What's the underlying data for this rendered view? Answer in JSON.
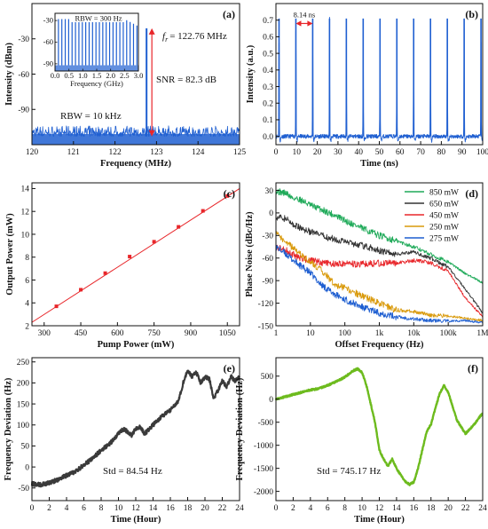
{
  "chart_data": [
    {
      "panel_label": "(a)",
      "type": "line",
      "xlabel": "Frequency (MHz)",
      "ylabel": "Intensity (dBm)",
      "xlim": [
        120,
        125
      ],
      "ylim": [
        -120,
        0
      ],
      "xticks": [
        120,
        121,
        122,
        123,
        124,
        125
      ],
      "yticks": [
        -30,
        -60,
        -90
      ],
      "color": "#1f5fd1",
      "noise_floor_dbm": -113,
      "peak": {
        "x": 122.76,
        "y": -21
      },
      "annotations": {
        "rep_rate": "= 122.76 MHz",
        "snr": "SNR = 82.3 dB",
        "rbw": "RBW = 10 kHz",
        "rep_rate_symbol": "f",
        "rep_rate_sub": "r"
      },
      "inset": {
        "rbw": "RBW = 300 Hz",
        "xlabel": "Frequency (GHz)",
        "xlim": [
          0,
          3.0
        ],
        "ylim": [
          -100,
          -20
        ],
        "xticks": [
          "0.0",
          "0.5",
          "1.0",
          "1.5",
          "2.0",
          "2.5",
          "3.0"
        ],
        "yticks": [
          -30,
          -60,
          -90
        ],
        "tone_spacing_ghz": 0.12276,
        "tone_top_dbm": -28,
        "floor_dbm": -92
      }
    },
    {
      "panel_label": "(b)",
      "type": "line",
      "xlabel": "Time (ns)",
      "ylabel": "Intensity (a.u.)",
      "xlim": [
        0,
        100
      ],
      "ylim": [
        -0.05,
        0.8
      ],
      "xticks": [
        0,
        10,
        20,
        30,
        40,
        50,
        60,
        70,
        80,
        90,
        100
      ],
      "yticks": [
        "0.0",
        "0.1",
        "0.2",
        "0.3",
        "0.4",
        "0.5",
        "0.6",
        "0.7"
      ],
      "color": "#1f5fd1",
      "pulse_times_ns": [
        1.5,
        9.64,
        17.78,
        25.92,
        34.06,
        42.2,
        50.34,
        58.48,
        66.62,
        74.76,
        82.9,
        91.04,
        99.18
      ],
      "pulse_height": 0.71,
      "annotation": "8.14 ns",
      "annotation_span": [
        9.64,
        17.78
      ]
    },
    {
      "panel_label": "(c)",
      "type": "scatter",
      "xlabel": "Pump Power (mW)",
      "ylabel": "Output Power (mW)",
      "xlim": [
        250,
        1100
      ],
      "ylim": [
        2,
        14.5
      ],
      "xticks": [
        300,
        450,
        600,
        750,
        900,
        1050
      ],
      "yticks": [
        2,
        4,
        6,
        8,
        10,
        12,
        14
      ],
      "color": "#e8262a",
      "x": [
        350,
        450,
        550,
        650,
        750,
        850,
        950,
        1050
      ],
      "y": [
        3.7,
        5.15,
        6.6,
        8.05,
        9.35,
        10.65,
        12.05,
        13.35
      ],
      "fit_line": {
        "x": [
          250,
          1100
        ],
        "y": [
          2.3,
          14.0
        ]
      }
    },
    {
      "panel_label": "(d)",
      "type": "line",
      "xscale": "log",
      "xlabel": "Offset Frequency (Hz)",
      "ylabel": "Phase Noise (dBc/Hz)",
      "xlim": [
        1,
        1000000
      ],
      "ylim": [
        -150,
        40
      ],
      "xticks": [
        "1",
        "10",
        "100",
        "1k",
        "10k",
        "100k",
        "1M"
      ],
      "yticks": [
        30,
        0,
        -30,
        -60,
        -90,
        -120,
        -150
      ],
      "legend_position": "top-right",
      "series": [
        {
          "name": "850 mW",
          "color": "#1faa59",
          "x": [
            1,
            2,
            3,
            5,
            10,
            20,
            50,
            100,
            300,
            1000,
            3000,
            10000,
            30000,
            100000,
            300000,
            1000000
          ],
          "y": [
            29,
            26,
            20,
            18,
            10,
            5,
            -3,
            -10,
            -20,
            -30,
            -37,
            -45,
            -55,
            -65,
            -80,
            -93
          ]
        },
        {
          "name": "650 mW",
          "color": "#333333",
          "x": [
            1,
            2,
            3,
            5,
            10,
            20,
            50,
            100,
            300,
            1000,
            3000,
            10000,
            30000,
            100000,
            300000,
            1000000
          ],
          "y": [
            -5,
            -8,
            -15,
            -20,
            -25,
            -30,
            -35,
            -38,
            -43,
            -50,
            -55,
            -52,
            -60,
            -72,
            -100,
            -133
          ]
        },
        {
          "name": "450 mW",
          "color": "#e8262a",
          "x": [
            1,
            2,
            3,
            5,
            10,
            20,
            50,
            100,
            300,
            1000,
            3000,
            10000,
            30000,
            100000,
            300000,
            1000000
          ],
          "y": [
            -45,
            -50,
            -55,
            -60,
            -63,
            -66,
            -68,
            -68,
            -68,
            -67,
            -67,
            -63,
            -66,
            -77,
            -112,
            -138
          ]
        },
        {
          "name": "250 mW",
          "color": "#d99a0c",
          "x": [
            1,
            2,
            3,
            5,
            10,
            20,
            50,
            100,
            300,
            1000,
            3000,
            10000,
            30000,
            100000,
            300000,
            1000000
          ],
          "y": [
            -28,
            -38,
            -46,
            -55,
            -65,
            -75,
            -95,
            -100,
            -110,
            -120,
            -129,
            -131,
            -136,
            -137,
            -140,
            -143
          ]
        },
        {
          "name": "275 mW",
          "color": "#1f5fd1",
          "x": [
            1,
            2,
            3,
            5,
            10,
            20,
            50,
            100,
            300,
            1000,
            3000,
            10000,
            30000,
            100000,
            300000,
            1000000
          ],
          "y": [
            -45,
            -55,
            -62,
            -70,
            -80,
            -95,
            -108,
            -115,
            -125,
            -133,
            -138,
            -141,
            -143,
            -144,
            -143,
            -146
          ]
        }
      ]
    },
    {
      "panel_label": "(e)",
      "type": "line",
      "xlabel": "Time (Hour)",
      "ylabel": "Frequency Deviation (Hz)",
      "xlim": [
        0,
        24
      ],
      "ylim": [
        -80,
        260
      ],
      "xticks": [
        0,
        2,
        4,
        6,
        8,
        10,
        12,
        14,
        16,
        18,
        20,
        22,
        24
      ],
      "yticks": [
        -50,
        0,
        50,
        100,
        150,
        200,
        250
      ],
      "color": "#3a3a3a",
      "annotation": "Std = 84.54 Hz",
      "x": [
        0,
        1,
        2,
        3,
        4,
        5,
        6,
        7,
        8,
        9,
        10,
        10.5,
        11,
        11.5,
        12,
        12.5,
        13,
        13.5,
        14,
        15,
        16,
        17,
        17.6,
        18,
        18.5,
        19,
        19.5,
        20,
        20.5,
        21,
        21.5,
        22,
        22.5,
        23,
        23.5,
        24
      ],
      "y": [
        -40,
        -42,
        -38,
        -30,
        -20,
        -12,
        5,
        20,
        40,
        55,
        80,
        90,
        85,
        75,
        90,
        95,
        80,
        88,
        100,
        120,
        135,
        160,
        210,
        230,
        215,
        225,
        200,
        215,
        210,
        165,
        180,
        205,
        190,
        215,
        205,
        215
      ]
    },
    {
      "panel_label": "(f)",
      "type": "line",
      "xlabel": "Time (Hour)",
      "ylabel": "Frequency Deviation (Hz)",
      "xlim": [
        0,
        24
      ],
      "ylim": [
        -2200,
        900
      ],
      "xticks": [
        0,
        2,
        4,
        6,
        8,
        10,
        12,
        14,
        16,
        18,
        20,
        22,
        24
      ],
      "yticks": [
        500,
        0,
        -500,
        -1000,
        -1500,
        -2000
      ],
      "color": "#6dbb1e",
      "annotation": "Std = 745.17 Hz",
      "x": [
        0,
        1,
        2,
        3,
        4,
        5,
        6,
        7,
        8,
        9,
        9.5,
        10,
        10.5,
        11,
        11.5,
        12,
        12.5,
        13,
        13.5,
        14,
        14.5,
        15,
        15.5,
        16,
        16.5,
        17,
        17.5,
        18,
        18.5,
        19,
        19.5,
        20,
        20.5,
        21,
        22,
        23,
        24
      ],
      "y": [
        0,
        50,
        100,
        150,
        200,
        230,
        300,
        380,
        480,
        620,
        660,
        580,
        300,
        -100,
        -500,
        -1100,
        -1300,
        -1450,
        -1300,
        -1500,
        -1650,
        -1780,
        -1850,
        -1800,
        -1500,
        -1100,
        -700,
        -550,
        -200,
        120,
        300,
        150,
        -150,
        -450,
        -750,
        -550,
        -300
      ]
    }
  ]
}
